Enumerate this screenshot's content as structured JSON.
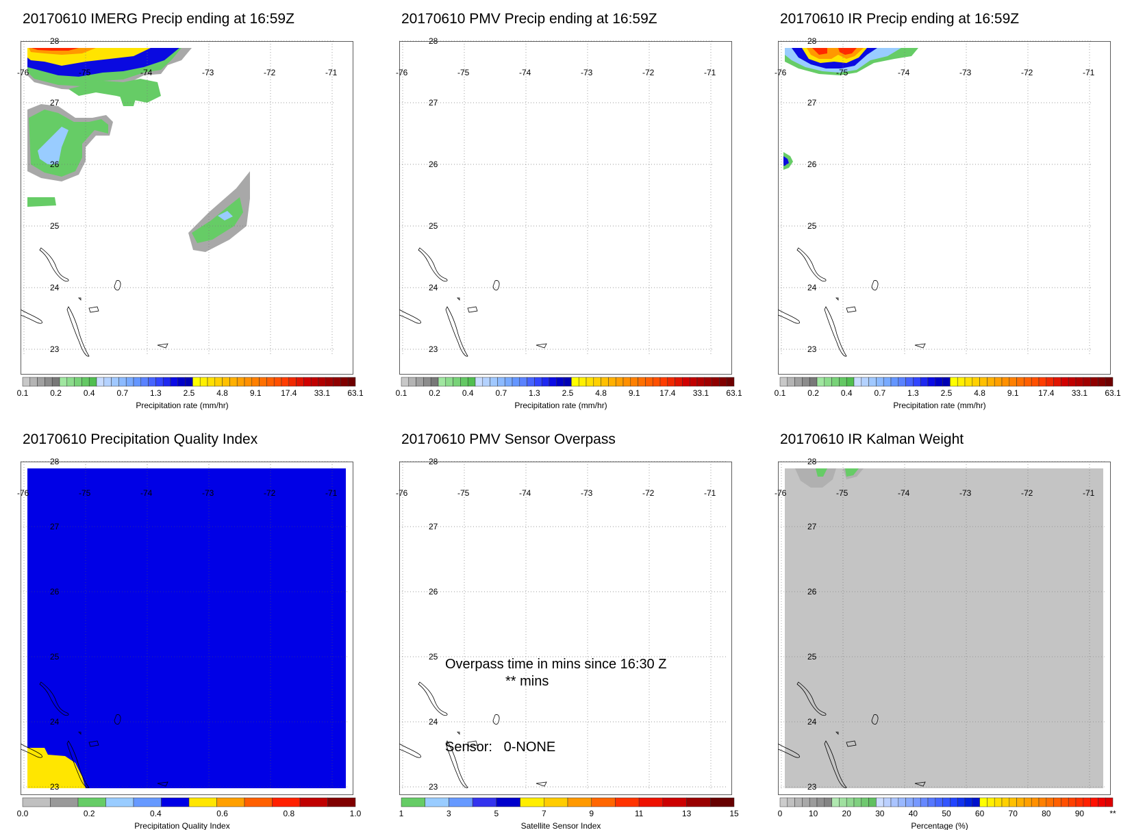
{
  "grid": {
    "lon_labels": [
      "-76",
      "-75",
      "-74",
      "-73",
      "-72",
      "-71"
    ],
    "lat_labels": [
      "28",
      "27",
      "26",
      "25",
      "24",
      "23"
    ]
  },
  "colors": {
    "ocean_bg": "#ffffff",
    "quality_blue": "#0000e6",
    "quality_yellow": "#ffe600",
    "kalman_gray": "#c4c4c4",
    "gray": "#aaaaaa",
    "green": "#66cc66",
    "lightblue": "#99ccff",
    "blue": "#0a0ae0",
    "yellow": "#ffe400",
    "orange": "#ff9900",
    "red": "#ff2a00"
  },
  "panels": [
    {
      "title": "20170610 IMERG Precip ending at 16:59Z",
      "colorbar_label": "Precipitation rate (mm/hr)",
      "colorbar_ticks": [
        "0.1",
        "0.2",
        "0.4",
        "0.7",
        "1.3",
        "2.5",
        "4.8",
        "9.1",
        "17.4",
        "33.1",
        "63.1"
      ]
    },
    {
      "title": "20170610 PMV Precip ending at 16:59Z",
      "colorbar_label": "Precipitation rate (mm/hr)",
      "colorbar_ticks": [
        "0.1",
        "0.2",
        "0.4",
        "0.7",
        "1.3",
        "2.5",
        "4.8",
        "9.1",
        "17.4",
        "33.1",
        "63.1"
      ]
    },
    {
      "title": "20170610 IR Precip ending at 16:59Z",
      "colorbar_label": "Precipitation rate (mm/hr)",
      "colorbar_ticks": [
        "0.1",
        "0.2",
        "0.4",
        "0.7",
        "1.3",
        "2.5",
        "4.8",
        "9.1",
        "17.4",
        "33.1",
        "63.1"
      ]
    },
    {
      "title": "20170610 Precipitation Quality Index",
      "colorbar_label": "Precipitation Quality Index",
      "colorbar_ticks": [
        "0.0",
        "0.2",
        "0.4",
        "0.6",
        "0.8",
        "1.0"
      ]
    },
    {
      "title": "20170610 PMV Sensor Overpass",
      "colorbar_label": "Satellite Sensor Index",
      "colorbar_ticks": [
        "1",
        "3",
        "5",
        "7",
        "9",
        "11",
        "13",
        "15"
      ],
      "annotation_line1": "Overpass time in mins since 16:30 Z",
      "annotation_line2": "** mins",
      "annotation_sensor": "Sensor:   0-NONE"
    },
    {
      "title": "20170610 IR Kalman Weight",
      "colorbar_label": "Percentage (%)",
      "colorbar_ticks": [
        "0",
        "10",
        "20",
        "30",
        "40",
        "50",
        "60",
        "70",
        "80",
        "90",
        "**"
      ]
    }
  ],
  "colorbar_colors": {
    "precip": [
      "#c8c8c8",
      "#b4b4b4",
      "#a0a0a0",
      "#8c8c8c",
      "#787878",
      "#a0e6a0",
      "#8cdc8c",
      "#78d278",
      "#64c864",
      "#50be50",
      "#c8dcff",
      "#b4d2ff",
      "#a0c8ff",
      "#8cbaff",
      "#78aaff",
      "#6496ff",
      "#5a82ff",
      "#4664ff",
      "#3246ff",
      "#1e28f0",
      "#0a0ae6",
      "#0000c8",
      "#0000b4",
      "#ffff00",
      "#fff000",
      "#ffe000",
      "#ffd000",
      "#ffc000",
      "#ffb000",
      "#ffa000",
      "#ff9000",
      "#ff8000",
      "#ff7000",
      "#ff6000",
      "#ff5000",
      "#ff3c00",
      "#f02800",
      "#e01400",
      "#d00000",
      "#c00000",
      "#b00000",
      "#a00000",
      "#900000",
      "#800000",
      "#6e0000"
    ],
    "quality": [
      "#c0c0c0",
      "#999999",
      "#66cc66",
      "#99ccff",
      "#6699ff",
      "#0000e6",
      "#ffe600",
      "#ffa000",
      "#ff6000",
      "#ff2000",
      "#c00000",
      "#800000"
    ],
    "sensor": [
      "#66cc66",
      "#99ccff",
      "#6699ff",
      "#3333ee",
      "#0000cc",
      "#ffee00",
      "#ffcc00",
      "#ff9900",
      "#ff6600",
      "#ff3300",
      "#ee1100",
      "#cc0000",
      "#990000",
      "#660000"
    ],
    "kalman": [
      "#cccccc",
      "#c0c0c0",
      "#b4b4b4",
      "#a8a8a8",
      "#9c9c9c",
      "#909090",
      "#848484",
      "#b0e8b0",
      "#a0e0a0",
      "#90d890",
      "#80d080",
      "#70c870",
      "#60c060",
      "#ccddff",
      "#bbd0ff",
      "#aac4ff",
      "#99b8ff",
      "#88aaff",
      "#7799ff",
      "#6688ff",
      "#5577ff",
      "#4466ff",
      "#3355ff",
      "#2244ff",
      "#1133ee",
      "#0022dd",
      "#0011cc",
      "#ffff00",
      "#fff000",
      "#ffe000",
      "#ffd000",
      "#ffc000",
      "#ffb000",
      "#ffa000",
      "#ff9000",
      "#ff8000",
      "#ff7000",
      "#ff6000",
      "#ff5000",
      "#ff4000",
      "#ff3000",
      "#ff2000",
      "#ff1000",
      "#ee0000",
      "#dd0000"
    ]
  }
}
